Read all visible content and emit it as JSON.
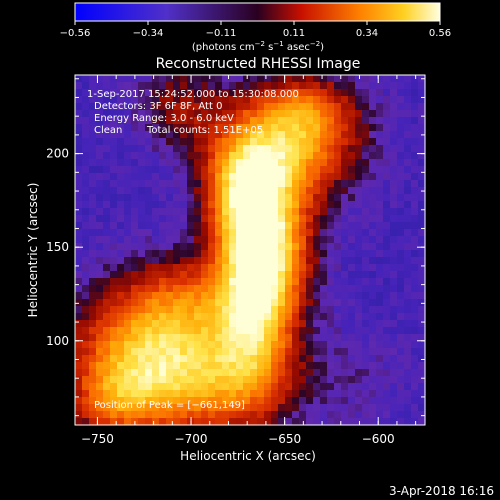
{
  "chart_data": {
    "type": "heatmap",
    "title": "Reconstructed RHESSI Image",
    "colorbar": {
      "ticks": [
        "−0.56",
        "−0.34",
        "−0.11",
        "0.11",
        "0.34",
        "0.56"
      ],
      "range": [
        -0.56,
        0.56
      ],
      "label_parts": {
        "a": "(photons cm",
        "a_sup": "−2",
        "b": " s",
        "b_sup": "−1",
        "c": " asec",
        "c_sup": "−2",
        "d": ")"
      }
    },
    "annotations": {
      "time": "1-Sep-2017 15:24:52.000 to 15:30:08.000",
      "detectors": "Detectors: 3F 6F 8F, Att 0",
      "energy": "Energy Range: 3.0 - 6.0 keV",
      "clean": "Clean",
      "counts": "Total counts: 1.51E+05",
      "peak": "Position of Peak = [−661,149]"
    },
    "xlabel": "Heliocentric X (arcsec)",
    "ylabel": "Heliocentric Y (arcsec)",
    "xlim": [
      -762,
      -575
    ],
    "ylim": [
      55,
      242
    ],
    "xticks": [
      {
        "v": -750,
        "label": "−750"
      },
      {
        "v": -700,
        "label": "−700"
      },
      {
        "v": -650,
        "label": "−650"
      },
      {
        "v": -600,
        "label": "−600"
      }
    ],
    "yticks": [
      {
        "v": 100,
        "label": "100"
      },
      {
        "v": 150,
        "label": "150"
      },
      {
        "v": 200,
        "label": "200"
      }
    ],
    "peak": [
      -661,
      149
    ],
    "date_stamp": "3-Apr-2018 16:16"
  }
}
